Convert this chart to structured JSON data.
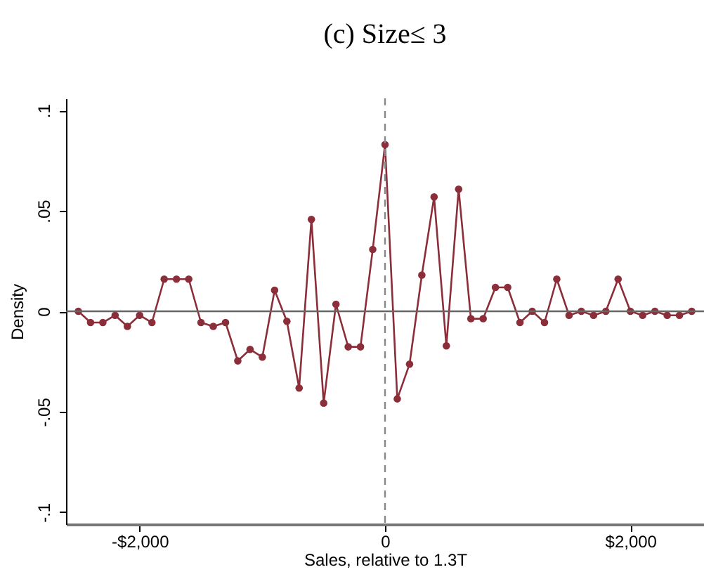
{
  "chart_data": {
    "type": "line",
    "title": "(c) Size≤ 3",
    "xlabel": "Sales, relative to 1.3T",
    "ylabel": "Density",
    "x": [
      -2500,
      -2400,
      -2300,
      -2200,
      -2100,
      -2000,
      -1900,
      -1800,
      -1700,
      -1600,
      -1500,
      -1400,
      -1300,
      -1200,
      -1100,
      -1000,
      -900,
      -800,
      -700,
      -600,
      -500,
      -400,
      -300,
      -200,
      -100,
      0,
      100,
      200,
      300,
      400,
      500,
      600,
      700,
      800,
      900,
      1000,
      1100,
      1200,
      1300,
      1400,
      1500,
      1600,
      1700,
      1800,
      1900,
      2000,
      2100,
      2200,
      2300,
      2400,
      2500
    ],
    "series": [
      {
        "color": "#8b2e3a",
        "values": [
          0,
          -0.0056,
          -0.0056,
          -0.002,
          -0.0075,
          -0.002,
          -0.0056,
          0.016,
          0.016,
          0.016,
          -0.0056,
          -0.0075,
          -0.0056,
          -0.0247,
          -0.019,
          -0.0228,
          0.0105,
          -0.005,
          -0.0382,
          0.0457,
          -0.0457,
          0.0035,
          -0.0177,
          -0.0177,
          0.0308,
          0.083,
          -0.0436,
          -0.0263,
          0.018,
          0.0569,
          -0.0172,
          0.0608,
          -0.0037,
          -0.0037,
          0.0119,
          0.0119,
          -0.0056,
          0,
          -0.0056,
          0.016,
          -0.002,
          0,
          -0.002,
          0,
          0.016,
          0,
          -0.002,
          0,
          -0.002,
          -0.002,
          0
        ]
      }
    ],
    "xlim": [
      -2600,
      2600
    ],
    "xticks": [
      {
        "value": -2000,
        "label": "-$2,000"
      },
      0,
      {
        "value": 2000,
        "label": "$2,000"
      }
    ],
    "ylim": [
      -0.106,
      0.106
    ],
    "yticks": [
      {
        "value": -0.1,
        "label": "-.1"
      },
      {
        "value": -0.05,
        "label": "-.05"
      },
      0,
      {
        "value": 0.05,
        "label": ".05"
      },
      {
        "value": 0.1,
        "label": ".1"
      }
    ],
    "ref_lines": [
      {
        "axis": "y",
        "value": 0,
        "color": "#666666",
        "line_style": "solid"
      },
      {
        "axis": "x",
        "value": 0,
        "color": "#888888",
        "line_style": "dashed"
      }
    ],
    "grid": false,
    "marker": "circle",
    "line_style": "solid"
  }
}
